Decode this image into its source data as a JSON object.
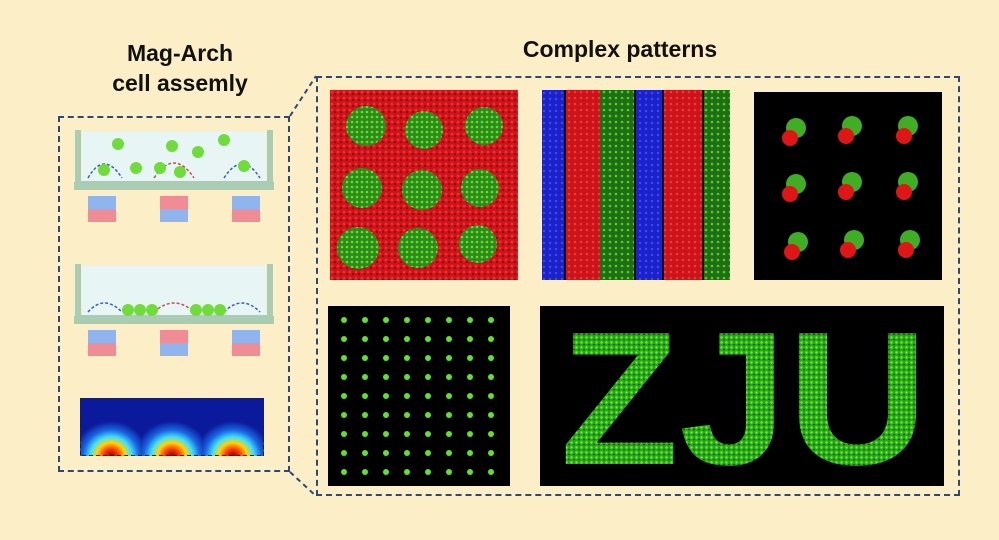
{
  "left_title_line1": "Mag-Arch",
  "left_title_line2": "cell assemly",
  "right_title": "Complex patterns",
  "panel_text": "ZJU",
  "colors": {
    "background": "#fcefc8",
    "dash": "#2d4a75",
    "cell_green": "#5fe22a",
    "pattern_red": "#e01616",
    "pattern_blue": "#1b22c8",
    "magnet_pink": "#f08c96",
    "magnet_blue": "#8fb4ee",
    "dish": "#a9cdb3"
  },
  "icons": [
    "dish-icon",
    "magnet-icon",
    "field-map-icon"
  ]
}
